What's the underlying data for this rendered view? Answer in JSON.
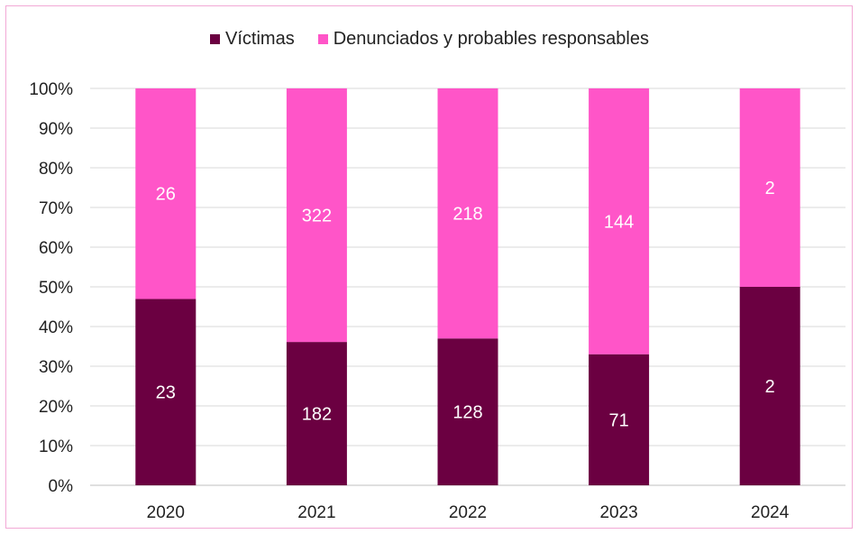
{
  "chart_data": {
    "type": "bar",
    "stacked": true,
    "normalized": true,
    "categories": [
      "2020",
      "2021",
      "2022",
      "2023",
      "2024"
    ],
    "series": [
      {
        "name": "Víctimas",
        "values": [
          23,
          182,
          128,
          71,
          2
        ],
        "color": "#6b0041"
      },
      {
        "name": "Denunciados y probables responsables",
        "values": [
          26,
          322,
          218,
          144,
          2
        ],
        "color": "#ff55c8"
      }
    ],
    "y_ticks": [
      "0%",
      "10%",
      "20%",
      "30%",
      "40%",
      "50%",
      "60%",
      "70%",
      "80%",
      "90%",
      "100%"
    ],
    "ylim": [
      0,
      100
    ],
    "legend_position": "top",
    "grid": true,
    "grid_color": "#d9d9d9",
    "border_color": "#f2a9d6"
  }
}
